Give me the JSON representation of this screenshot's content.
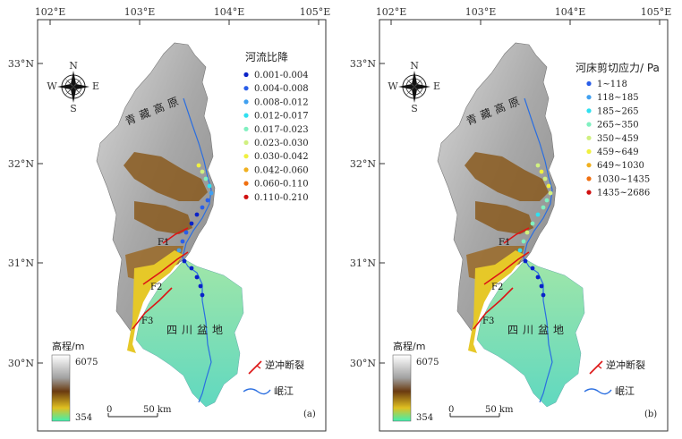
{
  "panels": [
    {
      "id": "a",
      "legend_title": "河流比降",
      "legend_items": [
        {
          "label": "0.001-0.004",
          "color": "#0a22c8"
        },
        {
          "label": "0.004-0.008",
          "color": "#2a5ee8"
        },
        {
          "label": "0.008-0.012",
          "color": "#40a0f0"
        },
        {
          "label": "0.012-0.017",
          "color": "#30e0f0"
        },
        {
          "label": "0.017-0.023",
          "color": "#80f0c0"
        },
        {
          "label": "0.023-0.030",
          "color": "#d0f080"
        },
        {
          "label": "0.030-0.042",
          "color": "#f0f040"
        },
        {
          "label": "0.042-0.060",
          "color": "#f0b020"
        },
        {
          "label": "0.060-0.110",
          "color": "#f07010"
        },
        {
          "label": "0.110-0.210",
          "color": "#d01010"
        }
      ],
      "panel_label": "(a)"
    },
    {
      "id": "b",
      "legend_title": "河床剪切应力/ Pa",
      "legend_items": [
        {
          "label": "1~118",
          "color": "#2a5ee8"
        },
        {
          "label": "118~185",
          "color": "#40a0f0"
        },
        {
          "label": "185~265",
          "color": "#30e0f0"
        },
        {
          "label": "265~350",
          "color": "#80f0c0"
        },
        {
          "label": "350~459",
          "color": "#d0f080"
        },
        {
          "label": "459~649",
          "color": "#f0f040"
        },
        {
          "label": "649~1030",
          "color": "#f0b020"
        },
        {
          "label": "1030~1435",
          "color": "#f07010"
        },
        {
          "label": "1435~2686",
          "color": "#d01010"
        }
      ],
      "panel_label": "(b)"
    }
  ],
  "lon_ticks": [
    "102°E",
    "103°E",
    "104°E",
    "105°E"
  ],
  "lat_ticks": [
    "33°N",
    "32°N",
    "31°N",
    "30°N"
  ],
  "compass": {
    "n": "N",
    "s": "S",
    "e": "E",
    "w": "W"
  },
  "plateau_label": "青藏高原",
  "basin_label": "四川盆地",
  "faults": [
    "F1",
    "F2",
    "F3"
  ],
  "elevation": {
    "title": "高程/m",
    "max": "6075",
    "min": "354"
  },
  "scale_bar": {
    "zero": "0",
    "label": "50 km"
  },
  "map_legend": {
    "fault": "逆冲断裂",
    "river": "岷江"
  },
  "colors": {
    "frame": "#333333",
    "mountain_gray": "#b4b4b4",
    "mountain_brown": "#8a5a1e",
    "foothill_yellow": "#e6c828",
    "basin_green": "#8ee0b0",
    "river": "#2a6ee0",
    "fault": "#dd1515"
  }
}
